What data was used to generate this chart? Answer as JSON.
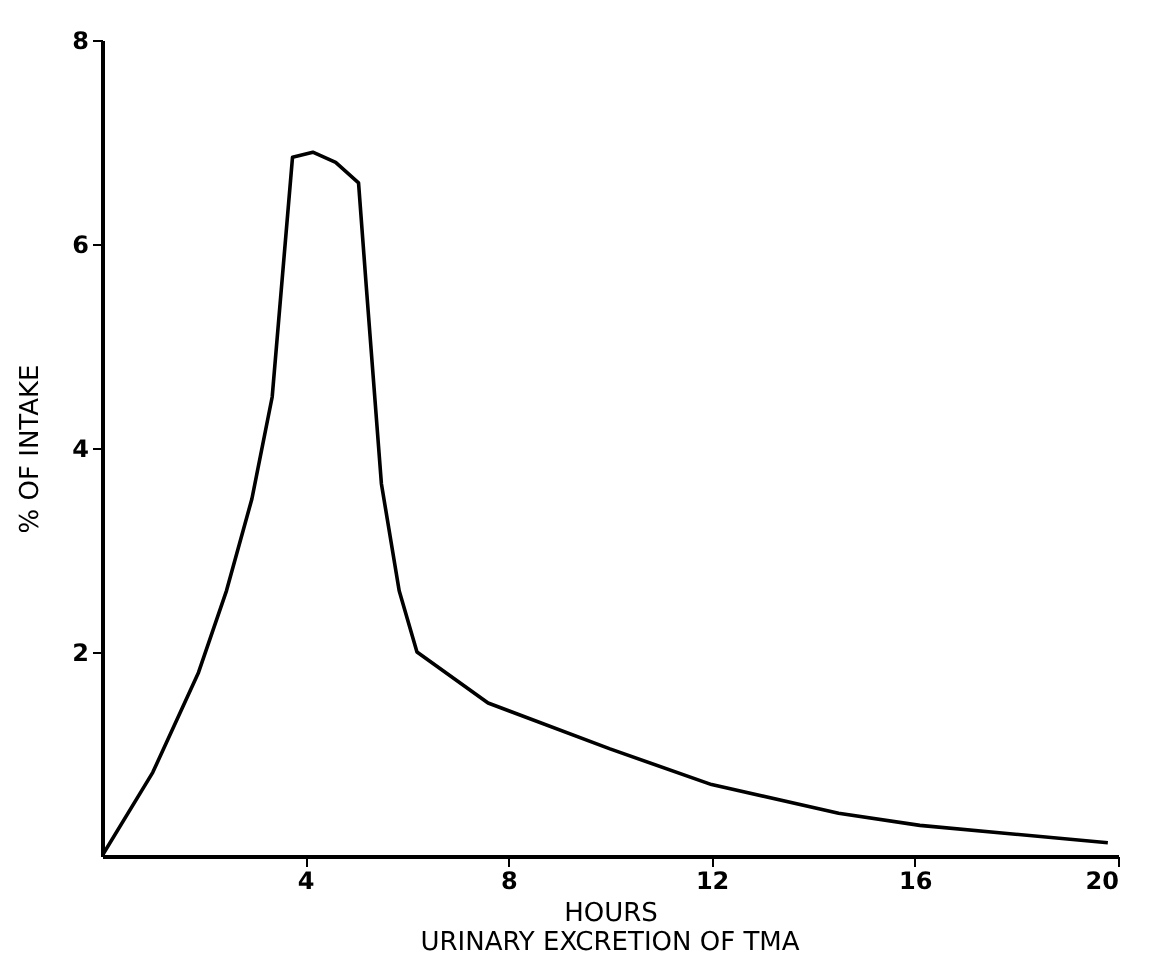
{
  "chart_data": {
    "type": "line",
    "title": "URINARY EXCRETION OF TMA",
    "xlabel": "HOURS",
    "ylabel": "% OF INTAKE",
    "x": [
      0,
      1,
      1.9,
      2.45,
      2.95,
      3.35,
      3.75,
      4.15,
      4.6,
      5.05,
      5.2,
      5.5,
      5.85,
      6.2,
      7.6,
      10,
      12,
      14.5,
      16.1,
      19.8
    ],
    "values": [
      0,
      0.82,
      1.8,
      2.6,
      3.5,
      4.5,
      6.85,
      6.9,
      6.8,
      6.6,
      5.6,
      3.65,
      2.6,
      2.0,
      1.5,
      1.05,
      0.7,
      0.42,
      0.3,
      0.13
    ],
    "color": "#000000",
    "xlim": [
      0,
      20
    ],
    "ylim": [
      0,
      8
    ],
    "xticks": [
      4,
      8,
      12,
      16,
      20
    ],
    "yticks": [
      2,
      4,
      6,
      8
    ],
    "grid": false,
    "legend": false,
    "marker": "none",
    "line_style": "solid"
  }
}
